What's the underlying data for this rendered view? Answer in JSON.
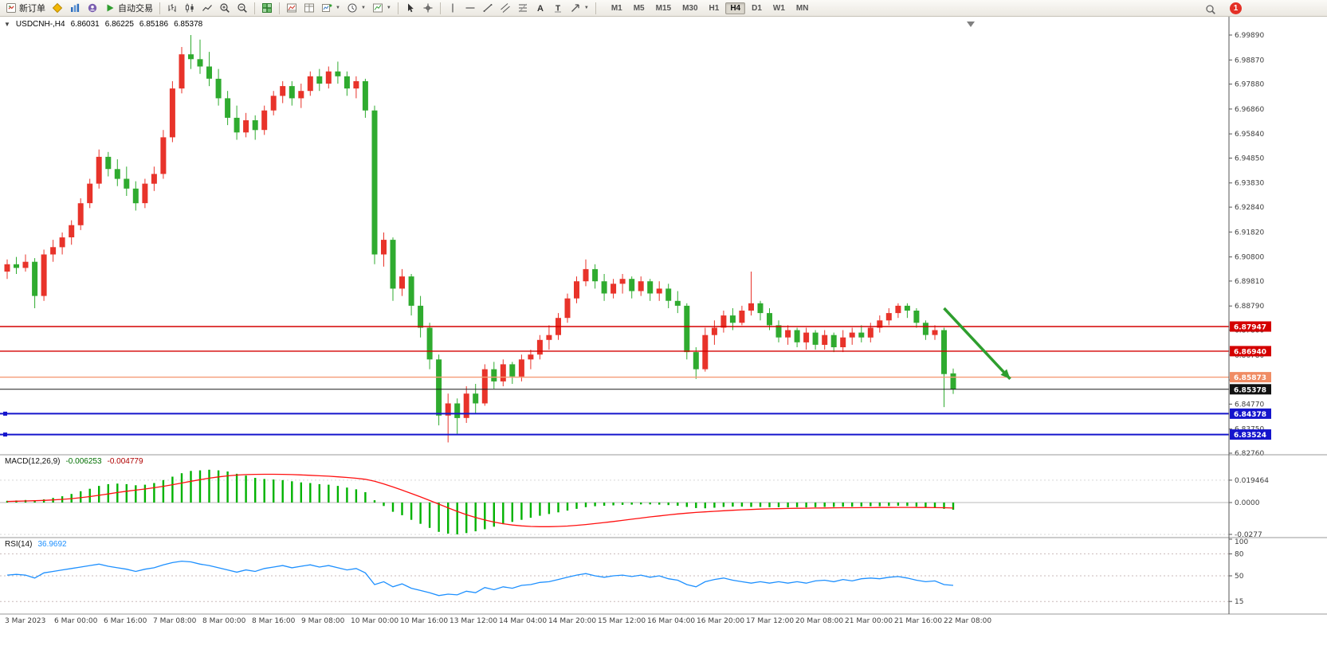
{
  "toolbar": {
    "new_order": "新订单",
    "autotrading": "自动交易",
    "timeframes": [
      "M1",
      "M5",
      "M15",
      "M30",
      "H1",
      "H4",
      "D1",
      "W1",
      "MN"
    ],
    "active_timeframe": "H4",
    "badge_count": "1"
  },
  "chart": {
    "symbol_period": "USDCNH-,H4",
    "open": "6.86031",
    "high": "6.86225",
    "low": "6.85186",
    "close": "6.85378"
  },
  "chart_data": [
    {
      "type": "candlestick",
      "symbol": "USDCNH-",
      "timeframe": "H4",
      "ylim": [
        6.8276,
        6.9989
      ],
      "y_ticks": [
        "6.99890",
        "6.98870",
        "6.97880",
        "6.96860",
        "6.95840",
        "6.94850",
        "6.93830",
        "6.92840",
        "6.91820",
        "6.90800",
        "6.89810",
        "6.88790",
        "6.87800",
        "6.86780",
        "6.85760",
        "6.84770",
        "6.83750",
        "6.82760"
      ],
      "x_labels": [
        "3 Mar 2023",
        "6 Mar 00:00",
        "6 Mar 16:00",
        "7 Mar 08:00",
        "8 Mar 00:00",
        "8 Mar 16:00",
        "9 Mar 08:00",
        "10 Mar 00:00",
        "10 Mar 16:00",
        "13 Mar 12:00",
        "14 Mar 04:00",
        "14 Mar 20:00",
        "15 Mar 12:00",
        "16 Mar 04:00",
        "16 Mar 20:00",
        "17 Mar 12:00",
        "20 Mar 08:00",
        "21 Mar 00:00",
        "21 Mar 16:00",
        "22 Mar 08:00"
      ],
      "colors": {
        "up": "#e8332a",
        "down": "#2fab2f"
      },
      "ohlc": [
        [
          6.902,
          6.907,
          6.899,
          6.905
        ],
        [
          6.905,
          6.908,
          6.901,
          6.9035
        ],
        [
          6.9035,
          6.909,
          6.902,
          6.906
        ],
        [
          6.906,
          6.9075,
          6.887,
          6.892
        ],
        [
          6.892,
          6.911,
          6.89,
          6.909
        ],
        [
          6.909,
          6.915,
          6.906,
          6.912
        ],
        [
          6.912,
          6.918,
          6.909,
          6.916
        ],
        [
          6.916,
          6.923,
          6.913,
          6.921
        ],
        [
          6.921,
          6.932,
          6.919,
          6.93
        ],
        [
          6.93,
          6.94,
          6.928,
          6.938
        ],
        [
          6.938,
          6.952,
          6.936,
          6.949
        ],
        [
          6.949,
          6.951,
          6.941,
          6.944
        ],
        [
          6.944,
          6.948,
          6.937,
          6.94
        ],
        [
          6.94,
          6.945,
          6.933,
          6.936
        ],
        [
          6.936,
          6.939,
          6.927,
          6.93
        ],
        [
          6.93,
          6.94,
          6.928,
          6.938
        ],
        [
          6.938,
          6.945,
          6.935,
          6.942
        ],
        [
          6.942,
          6.96,
          6.94,
          6.957
        ],
        [
          6.957,
          6.98,
          6.955,
          6.977
        ],
        [
          6.977,
          6.994,
          6.975,
          6.991
        ],
        [
          6.991,
          6.9989,
          6.985,
          6.989
        ],
        [
          6.989,
          6.997,
          6.983,
          6.986
        ],
        [
          6.986,
          6.992,
          6.978,
          6.981
        ],
        [
          6.981,
          6.985,
          6.97,
          6.973
        ],
        [
          6.973,
          6.976,
          6.962,
          6.965
        ],
        [
          6.965,
          6.97,
          6.956,
          6.959
        ],
        [
          6.959,
          6.967,
          6.957,
          6.964
        ],
        [
          6.964,
          6.966,
          6.956,
          6.96
        ],
        [
          6.96,
          6.97,
          6.958,
          6.968
        ],
        [
          6.968,
          6.976,
          6.966,
          6.974
        ],
        [
          6.974,
          6.98,
          6.971,
          6.978
        ],
        [
          6.978,
          6.98,
          6.97,
          6.973
        ],
        [
          6.973,
          6.979,
          6.969,
          6.976
        ],
        [
          6.976,
          6.984,
          6.974,
          6.982
        ],
        [
          6.982,
          6.985,
          6.976,
          6.979
        ],
        [
          6.979,
          6.986,
          6.977,
          6.984
        ],
        [
          6.984,
          6.988,
          6.979,
          6.982
        ],
        [
          6.982,
          6.984,
          6.974,
          6.977
        ],
        [
          6.977,
          6.982,
          6.973,
          6.98
        ],
        [
          6.98,
          6.981,
          6.965,
          6.968
        ],
        [
          6.968,
          6.97,
          6.905,
          6.909
        ],
        [
          6.909,
          6.918,
          6.904,
          6.915
        ],
        [
          6.915,
          6.916,
          6.89,
          6.895
        ],
        [
          6.895,
          6.903,
          6.892,
          6.9
        ],
        [
          6.9,
          6.901,
          6.884,
          6.888
        ],
        [
          6.888,
          6.892,
          6.875,
          6.879
        ],
        [
          6.879,
          6.881,
          6.862,
          6.866
        ],
        [
          6.866,
          6.868,
          6.839,
          6.843
        ],
        [
          6.843,
          6.852,
          6.832,
          6.848
        ],
        [
          6.848,
          6.85,
          6.8355,
          6.842
        ],
        [
          6.842,
          6.855,
          6.84,
          6.852
        ],
        [
          6.852,
          6.856,
          6.844,
          6.848
        ],
        [
          6.848,
          6.864,
          6.847,
          6.862
        ],
        [
          6.862,
          6.865,
          6.854,
          6.857
        ],
        [
          6.857,
          6.866,
          6.855,
          6.864
        ],
        [
          6.864,
          6.865,
          6.856,
          6.859
        ],
        [
          6.859,
          6.868,
          6.857,
          6.866
        ],
        [
          6.866,
          6.87,
          6.862,
          6.868
        ],
        [
          6.868,
          6.876,
          6.866,
          6.874
        ],
        [
          6.874,
          6.88,
          6.87,
          6.876
        ],
        [
          6.876,
          6.885,
          6.874,
          6.883
        ],
        [
          6.883,
          6.893,
          6.881,
          6.891
        ],
        [
          6.891,
          6.9,
          6.889,
          6.898
        ],
        [
          6.898,
          6.907,
          6.896,
          6.903
        ],
        [
          6.903,
          6.905,
          6.895,
          6.898
        ],
        [
          6.898,
          6.901,
          6.89,
          6.893
        ],
        [
          6.893,
          6.899,
          6.891,
          6.897
        ],
        [
          6.897,
          6.901,
          6.893,
          6.899
        ],
        [
          6.899,
          6.9,
          6.891,
          6.894
        ],
        [
          6.894,
          6.9,
          6.892,
          6.898
        ],
        [
          6.898,
          6.899,
          6.89,
          6.893
        ],
        [
          6.893,
          6.898,
          6.89,
          6.895
        ],
        [
          6.895,
          6.897,
          6.887,
          6.89
        ],
        [
          6.89,
          6.894,
          6.885,
          6.888
        ],
        [
          6.888,
          6.889,
          6.866,
          6.869
        ],
        [
          6.869,
          6.871,
          6.858,
          6.862
        ],
        [
          6.862,
          6.879,
          6.861,
          6.876
        ],
        [
          6.876,
          6.882,
          6.872,
          6.879
        ],
        [
          6.879,
          6.886,
          6.877,
          6.884
        ],
        [
          6.884,
          6.887,
          6.878,
          6.881
        ],
        [
          6.881,
          6.888,
          6.88,
          6.886
        ],
        [
          6.886,
          6.902,
          6.884,
          6.889
        ],
        [
          6.889,
          6.89,
          6.882,
          6.885
        ],
        [
          6.885,
          6.887,
          6.878,
          6.88
        ],
        [
          6.88,
          6.882,
          6.873,
          6.875
        ],
        [
          6.875,
          6.88,
          6.872,
          6.878
        ],
        [
          6.878,
          6.879,
          6.871,
          6.873
        ],
        [
          6.873,
          6.879,
          6.87,
          6.877
        ],
        [
          6.877,
          6.878,
          6.87,
          6.872
        ],
        [
          6.872,
          6.878,
          6.87,
          6.876
        ],
        [
          6.876,
          6.877,
          6.869,
          6.871
        ],
        [
          6.871,
          6.878,
          6.869,
          6.875
        ],
        [
          6.875,
          6.879,
          6.872,
          6.877
        ],
        [
          6.877,
          6.88,
          6.873,
          6.875
        ],
        [
          6.875,
          6.881,
          6.873,
          6.879
        ],
        [
          6.879,
          6.884,
          6.877,
          6.882
        ],
        [
          6.882,
          6.887,
          6.88,
          6.885
        ],
        [
          6.885,
          6.889,
          6.883,
          6.888
        ],
        [
          6.888,
          6.889,
          6.883,
          6.886
        ],
        [
          6.886,
          6.887,
          6.879,
          6.881
        ],
        [
          6.881,
          6.882,
          6.874,
          6.876
        ],
        [
          6.876,
          6.88,
          6.874,
          6.878
        ],
        [
          6.878,
          6.879,
          6.8465,
          6.86
        ],
        [
          6.86031,
          6.86225,
          6.85186,
          6.85378
        ]
      ],
      "levels": [
        {
          "price": 6.87947,
          "label": "6.87947",
          "color": "#d40000",
          "width": 1.4,
          "box": "#d40000",
          "handles": false
        },
        {
          "price": 6.8694,
          "label": "6.86940",
          "color": "#d40000",
          "width": 1.4,
          "box": "#d40000",
          "handles": false
        },
        {
          "price": 6.85873,
          "label": "6.85873",
          "color": "#f59a76",
          "width": 1.4,
          "box": "#f08c64",
          "handles": false
        },
        {
          "price": 6.85378,
          "label": "6.85378",
          "color": "#1a1a1a",
          "width": 1,
          "box": "#111111",
          "handles": false
        },
        {
          "price": 6.84378,
          "label": "6.84378",
          "color": "#1515cc",
          "width": 2,
          "box": "#1515cc",
          "handles": true
        },
        {
          "price": 6.83524,
          "label": "6.83524",
          "color": "#1515cc",
          "width": 2,
          "box": "#1515cc",
          "handles": true
        }
      ],
      "arrow": {
        "from_index": 102,
        "from_price": 6.887,
        "to_index": 109.2,
        "to_price": 6.858,
        "color": "#2e9e2e"
      }
    },
    {
      "type": "bar",
      "label": "MACD(12,26,9)",
      "value_main": "-0.006253",
      "value_signal": "-0.004779",
      "y_ticks": [
        "0.019464",
        "0.0000",
        "-0.0277"
      ],
      "color_hist": "#00b200",
      "color_signal": "#ff1010",
      "histogram": [
        0.0015,
        0.0018,
        0.0022,
        0.002,
        0.0028,
        0.004,
        0.0055,
        0.0075,
        0.0098,
        0.012,
        0.0145,
        0.016,
        0.0165,
        0.016,
        0.015,
        0.0155,
        0.017,
        0.0195,
        0.0225,
        0.0255,
        0.0275,
        0.028,
        0.0285,
        0.028,
        0.027,
        0.025,
        0.0235,
        0.0215,
        0.0205,
        0.02,
        0.0195,
        0.0185,
        0.0175,
        0.017,
        0.016,
        0.0155,
        0.0145,
        0.013,
        0.0115,
        0.009,
        0.002,
        -0.003,
        -0.008,
        -0.011,
        -0.015,
        -0.0185,
        -0.022,
        -0.0255,
        -0.027,
        -0.0277,
        -0.0265,
        -0.025,
        -0.0232,
        -0.021,
        -0.0188,
        -0.0168,
        -0.015,
        -0.0132,
        -0.0115,
        -0.01,
        -0.0085,
        -0.007,
        -0.0055,
        -0.004,
        -0.0032,
        -0.0028,
        -0.0024,
        -0.002,
        -0.0018,
        -0.0016,
        -0.0016,
        -0.0018,
        -0.0022,
        -0.0028,
        -0.0038,
        -0.0048,
        -0.005,
        -0.0045,
        -0.0038,
        -0.0035,
        -0.0035,
        -0.0038,
        -0.0038,
        -0.004,
        -0.004,
        -0.0042,
        -0.004,
        -0.0042,
        -0.004,
        -0.0038,
        -0.0038,
        -0.0036,
        -0.0036,
        -0.0034,
        -0.0032,
        -0.0032,
        -0.003,
        -0.0028,
        -0.003,
        -0.0035,
        -0.004,
        -0.0042,
        -0.0055,
        -0.006253
      ],
      "signal": [
        0.001,
        0.0012,
        0.0014,
        0.0016,
        0.0019,
        0.0023,
        0.0028,
        0.0034,
        0.0042,
        0.0052,
        0.0063,
        0.0075,
        0.0087,
        0.0098,
        0.0108,
        0.0118,
        0.0129,
        0.0141,
        0.0155,
        0.017,
        0.0185,
        0.0199,
        0.0212,
        0.0223,
        0.0232,
        0.0239,
        0.0243,
        0.0245,
        0.0246,
        0.0246,
        0.0245,
        0.0243,
        0.024,
        0.0237,
        0.0233,
        0.0229,
        0.0224,
        0.0218,
        0.0211,
        0.0202,
        0.0185,
        0.0162,
        0.0136,
        0.0108,
        0.0079,
        0.0049,
        0.0018,
        -0.0014,
        -0.0046,
        -0.0077,
        -0.0105,
        -0.013,
        -0.0152,
        -0.017,
        -0.0184,
        -0.0195,
        -0.0203,
        -0.0208,
        -0.021,
        -0.021,
        -0.0208,
        -0.0204,
        -0.0198,
        -0.0191,
        -0.0183,
        -0.0174,
        -0.0165,
        -0.0155,
        -0.0145,
        -0.0135,
        -0.0125,
        -0.0116,
        -0.0107,
        -0.0099,
        -0.0092,
        -0.0086,
        -0.0081,
        -0.0076,
        -0.0071,
        -0.0067,
        -0.0063,
        -0.006,
        -0.0057,
        -0.0055,
        -0.0053,
        -0.0051,
        -0.005,
        -0.0049,
        -0.0048,
        -0.0047,
        -0.0046,
        -0.0045,
        -0.0045,
        -0.0044,
        -0.0044,
        -0.0043,
        -0.0043,
        -0.0042,
        -0.0042,
        -0.0043,
        -0.0043,
        -0.0044,
        -0.0045,
        -0.004779
      ]
    },
    {
      "type": "line",
      "label": "RSI(14)",
      "value": "36.9692",
      "y_ticks": [
        "100",
        "80",
        "50",
        "15"
      ],
      "levels": [
        80,
        50,
        15
      ],
      "color": "#1e90ff",
      "values": [
        51,
        52,
        51,
        47,
        54,
        56,
        58,
        60,
        62,
        64,
        66,
        63,
        61,
        59,
        56,
        59,
        61,
        65,
        68,
        70,
        69,
        66,
        64,
        61,
        58,
        55,
        58,
        56,
        60,
        62,
        64,
        61,
        63,
        65,
        62,
        64,
        61,
        58,
        60,
        54,
        38,
        42,
        35,
        39,
        33,
        30,
        27,
        23,
        25,
        24,
        29,
        27,
        34,
        31,
        35,
        33,
        37,
        38,
        41,
        42,
        45,
        48,
        51,
        53,
        50,
        48,
        50,
        51,
        49,
        51,
        48,
        50,
        46,
        44,
        38,
        35,
        42,
        45,
        47,
        44,
        42,
        40,
        42,
        40,
        42,
        40,
        42,
        40,
        43,
        44,
        42,
        45,
        43,
        46,
        47,
        46,
        48,
        49,
        47,
        44,
        42,
        43,
        38,
        36.9692
      ]
    }
  ]
}
